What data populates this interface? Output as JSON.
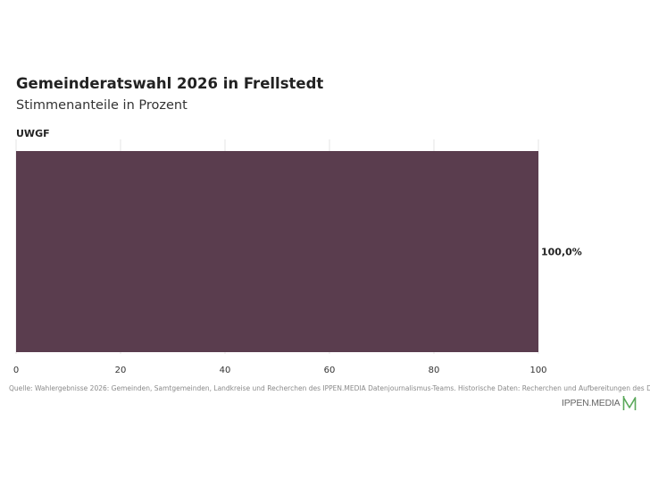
{
  "header": {
    "title": "Gemeinderatswahl 2026 in Frellstedt",
    "subtitle": "Stimmenanteile in Prozent"
  },
  "chart_data": {
    "type": "bar",
    "orientation": "horizontal",
    "categories": [
      "UWGF"
    ],
    "values": [
      100.0
    ],
    "value_labels": [
      "100,0%"
    ],
    "xlim": [
      0,
      100
    ],
    "xticks": [
      "0",
      "20",
      "40",
      "60",
      "80",
      "100"
    ],
    "grid": true,
    "legend": "none",
    "colors": {
      "bar": "#5a3d4e",
      "grid": "#e6e6e6"
    }
  },
  "footer": {
    "source": "Quelle: Wahlergebnisse 2026: Gemeinden, Samtgemeinden, Landkreise und Recherchen des IPPEN.MEDIA Datenjournalismus-Teams. Historische Daten: Recherchen und Aufbereitungen des Daten",
    "brand": "IPPEN.MEDIA",
    "brand_color": "#5aa85a"
  }
}
